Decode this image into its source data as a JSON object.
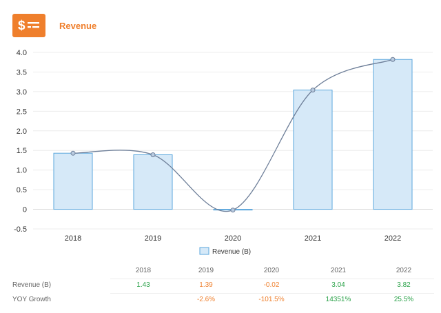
{
  "header": {
    "icon": "dollar-list-icon",
    "title": "Revenue",
    "accent_color": "#ef7f2c"
  },
  "chart_data": {
    "type": "bar",
    "categories": [
      "2018",
      "2019",
      "2020",
      "2021",
      "2022"
    ],
    "series": [
      {
        "name": "Revenue (B)",
        "values": [
          1.43,
          1.39,
          -0.02,
          3.04,
          3.82
        ],
        "render": "bar+smooth-line"
      }
    ],
    "ylim": [
      -0.5,
      4.0
    ],
    "yticks": [
      "4.0",
      "3.5",
      "3.0",
      "2.5",
      "2.0",
      "1.5",
      "1.0",
      "0.5",
      "0",
      "-0.5"
    ],
    "legend_position": "bottom-center",
    "grid": true,
    "bar_fill": "#d6e9f8",
    "bar_stroke": "#5aa6dc",
    "line_color": "#6e7f99"
  },
  "table": {
    "headers": [
      "2018",
      "2019",
      "2020",
      "2021",
      "2022"
    ],
    "rows": [
      {
        "label": "Revenue (B)",
        "values": [
          "1.43",
          "1.39",
          "-0.02",
          "3.04",
          "3.82"
        ]
      },
      {
        "label": "YOY Growth",
        "values": [
          "",
          "-2.6%",
          "-101.5%",
          "14351%",
          "25.5%"
        ]
      }
    ],
    "positive_color": "#27a046",
    "negative_color": "#ef7f2c"
  }
}
